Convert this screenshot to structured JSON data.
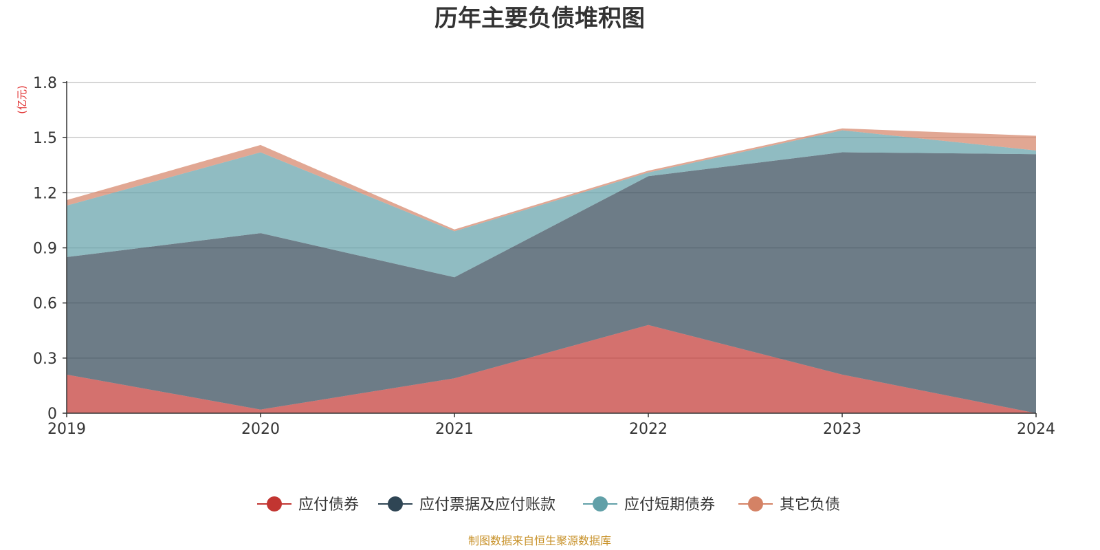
{
  "chart_data": {
    "type": "area",
    "stacked": true,
    "title": "历年主要负债堆积图",
    "unit": "(亿元)",
    "x": [
      "2019",
      "2020",
      "2021",
      "2022",
      "2023",
      "2024"
    ],
    "ylim": [
      0,
      1.8
    ],
    "yticks": [
      "0",
      "0.3",
      "0.6",
      "0.9",
      "1.2",
      "1.5",
      "1.8"
    ],
    "grid": true,
    "legend_position": "bottom",
    "series": [
      {
        "name": "应付债券",
        "color": "#c23531",
        "values": [
          0.21,
          0.02,
          0.19,
          0.48,
          0.21,
          0.0
        ]
      },
      {
        "name": "应付票据及应付账款",
        "color": "#2f4554",
        "values": [
          0.64,
          0.96,
          0.55,
          0.81,
          1.21,
          1.41
        ]
      },
      {
        "name": "应付短期债券",
        "color": "#61a0a8",
        "values": [
          0.28,
          0.44,
          0.25,
          0.02,
          0.12,
          0.02
        ]
      },
      {
        "name": "其它负债",
        "color": "#d48265",
        "values": [
          0.03,
          0.04,
          0.01,
          0.01,
          0.01,
          0.08
        ]
      }
    ]
  },
  "source": "制图数据来自恒生聚源数据库"
}
